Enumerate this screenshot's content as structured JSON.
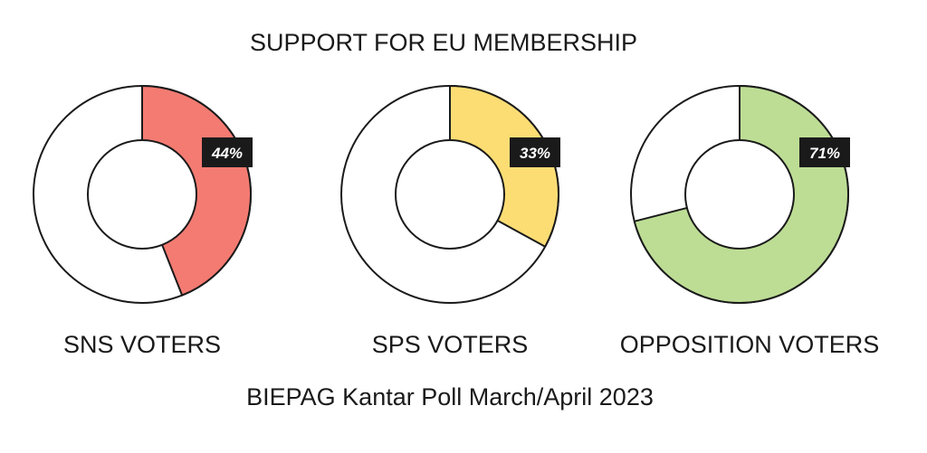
{
  "chart_data": {
    "type": "pie",
    "title": "SUPPORT FOR EU MEMBERSHIP",
    "source": "BIEPAG Kantar Poll March/April 2023",
    "donuts": [
      {
        "label": "SNS VOTERS",
        "value": 44,
        "value_label": "44%",
        "color": "#f47b72"
      },
      {
        "label": "SPS VOTERS",
        "value": 33,
        "value_label": "33%",
        "color": "#fcdd74"
      },
      {
        "label": "OPPOSITION VOTERS",
        "value": 71,
        "value_label": "71%",
        "color": "#bddd95"
      }
    ],
    "remainder_color": "#ffffff",
    "label_background": "#1a1a1a",
    "stroke_color": "#1a1a1a"
  }
}
